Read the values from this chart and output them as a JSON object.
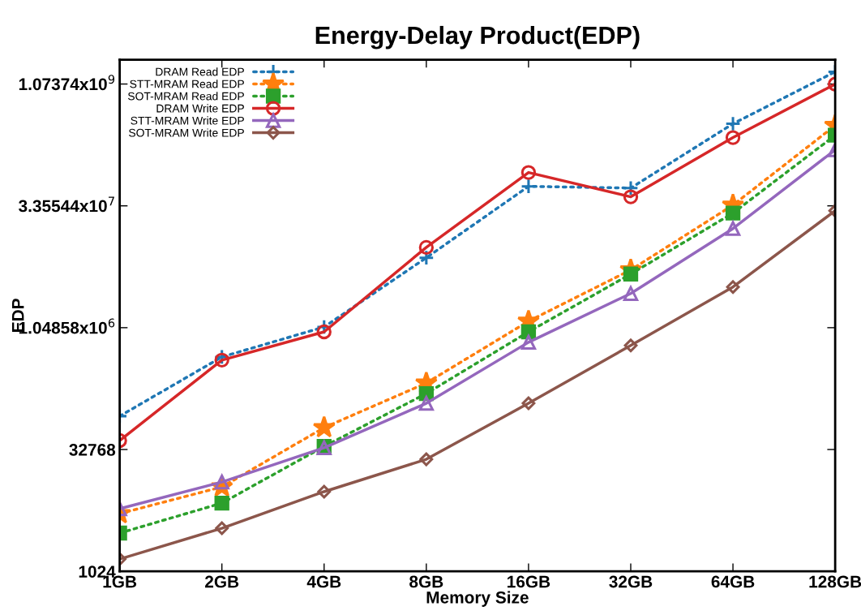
{
  "chart_data": {
    "type": "line",
    "title": "Energy-Delay Product(EDP)",
    "xlabel": "Memory Size",
    "ylabel": "EDP",
    "categories": [
      "1GB",
      "2GB",
      "4GB",
      "8GB",
      "16GB",
      "32GB",
      "64GB",
      "128GB"
    ],
    "log": true,
    "ylim": [
      1024,
      2147483648
    ],
    "yticks": [
      1024,
      32768,
      {
        "value": 1048576,
        "label": "1.04858x10$^{6}$"
      },
      {
        "value": 33554432,
        "label": "3.35544x10$^{7}$"
      },
      {
        "value": 1073741824,
        "label": "1.07374x10$^{9}$"
      }
    ],
    "grid": false,
    "legend": "top left",
    "series": [
      {
        "name": "DRAM Read EDP",
        "color": "#1f77b4",
        "marker": "cross",
        "line_style": "dotted",
        "values": [
          84700,
          456000,
          1070000,
          7670000,
          58400000,
          55700000,
          347000000,
          1520000000
        ]
      },
      {
        "name": "STT-MRAM Read EDP",
        "color": "#ff7f0e",
        "marker": "star",
        "line_style": "dotted",
        "values": [
          5290,
          11300,
          61100,
          217000,
          1260000,
          5420000,
          34300000,
          330000000
        ]
      },
      {
        "name": "SOT-MRAM Read EDP",
        "color": "#2ca02c",
        "marker": "square",
        "line_style": "dotted",
        "values": [
          3040,
          7130,
          35800,
          161000,
          932000,
          4820000,
          27300000,
          250000000
        ]
      },
      {
        "name": "DRAM Write EDP",
        "color": "#d62728",
        "marker": "circle",
        "line_style": "solid",
        "values": [
          42300,
          417000,
          932000,
          10300000,
          86700000,
          43400000,
          234000000,
          1070000000
        ]
      },
      {
        "name": "STT-MRAM Write EDP",
        "color": "#9467bd",
        "marker": "triangle",
        "line_style": "solid",
        "values": [
          6080,
          13000,
          34400,
          122000,
          692000,
          2770000,
          17600000,
          165000000
        ]
      },
      {
        "name": "SOT-MRAM Write EDP",
        "color": "#8c564b",
        "marker": "diamond",
        "line_style": "solid",
        "values": [
          1450,
          3490,
          9880,
          24800,
          122000,
          632000,
          3340000,
          29200000
        ]
      }
    ]
  }
}
